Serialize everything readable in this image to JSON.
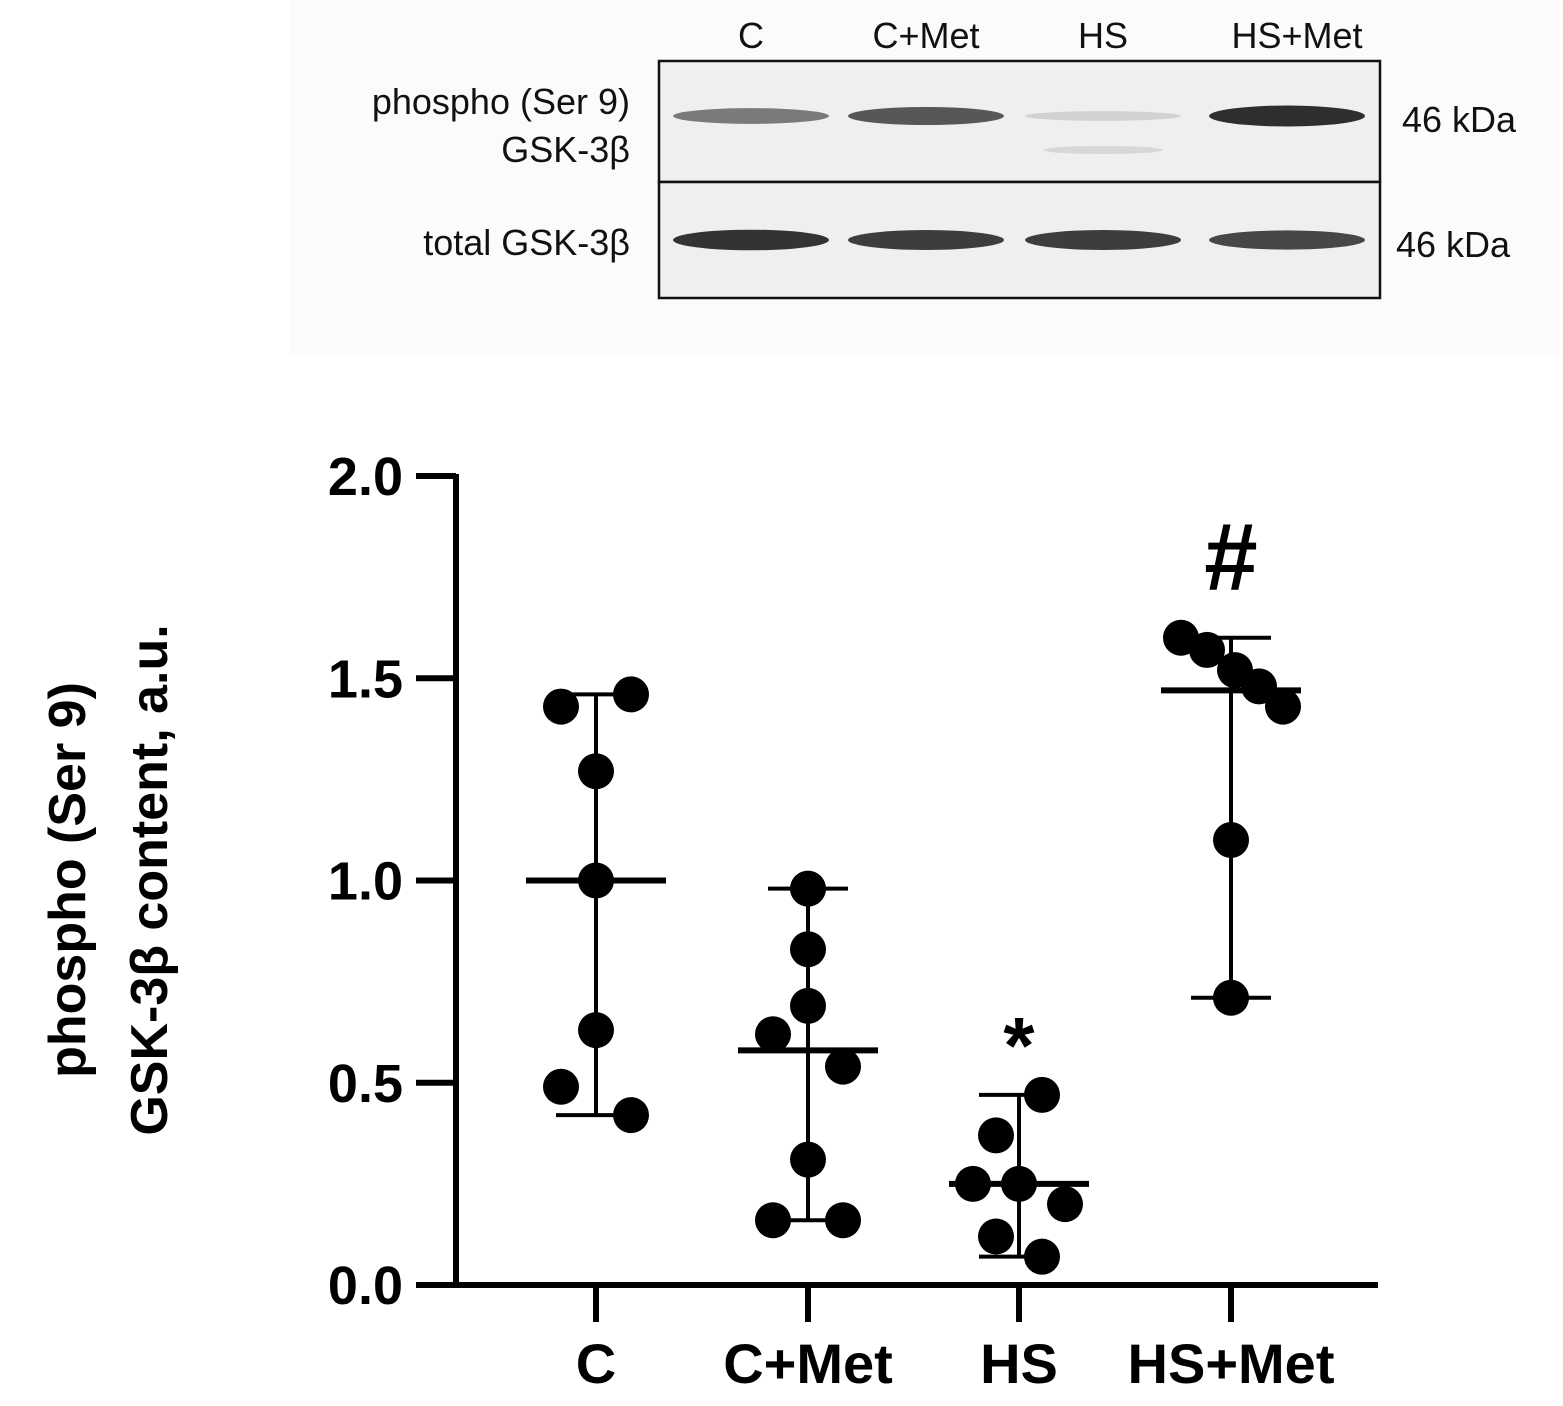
{
  "blot": {
    "lanes": [
      "C",
      "C+Met",
      "HS",
      "HS+Met"
    ],
    "rows": [
      {
        "label_lines": [
          "phospho (Ser 9)",
          "GSK-3β"
        ],
        "size": "46 kDa",
        "intensity": [
          0.55,
          0.72,
          0.12,
          0.92
        ]
      },
      {
        "label_lines": [
          "total GSK-3β"
        ],
        "size": "46 kDa",
        "intensity": [
          0.9,
          0.85,
          0.85,
          0.8
        ]
      }
    ]
  },
  "chart_data": {
    "type": "scatter",
    "ylabel_lines": [
      "phospho (Ser 9)",
      "GSK-3β content, a.u."
    ],
    "ylim": [
      0,
      2
    ],
    "yticks": [
      "0.0",
      "0.5",
      "1.0",
      "1.5",
      "2.0"
    ],
    "categories": [
      "C",
      "C+Met",
      "HS",
      "HS+Met"
    ],
    "groups": [
      {
        "name": "C",
        "points": [
          1.43,
          1.46,
          1.27,
          1.0,
          0.63,
          0.49,
          0.42
        ],
        "mean": 1.0,
        "range": [
          0.42,
          1.46
        ],
        "annotation": ""
      },
      {
        "name": "C+Met",
        "points": [
          0.98,
          0.83,
          0.69,
          0.62,
          0.54,
          0.31,
          0.16,
          0.16
        ],
        "mean": 0.58,
        "range": [
          0.16,
          0.98
        ],
        "annotation": ""
      },
      {
        "name": "HS",
        "points": [
          0.47,
          0.37,
          0.25,
          0.25,
          0.2,
          0.12,
          0.07
        ],
        "mean": 0.25,
        "range": [
          0.07,
          0.47
        ],
        "annotation": "*"
      },
      {
        "name": "HS+Met",
        "points": [
          1.6,
          1.57,
          1.52,
          1.48,
          1.43,
          1.1,
          0.71
        ],
        "mean": 1.47,
        "range": [
          0.71,
          1.6
        ],
        "annotation": "#"
      }
    ]
  }
}
